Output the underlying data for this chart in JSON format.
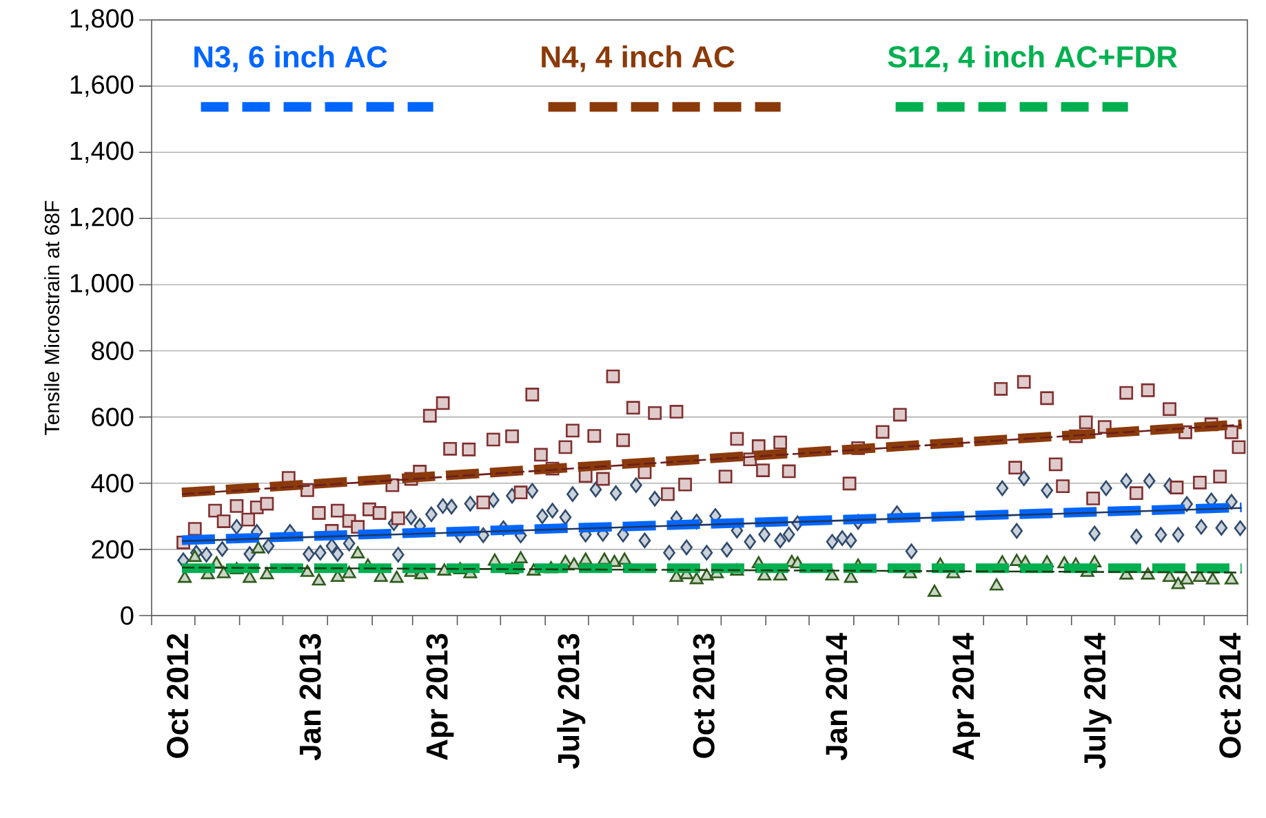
{
  "chart_data": {
    "type": "scatter",
    "ylabel": "Tensile Microstrain at 68F",
    "xlim": [
      "2012-09-13",
      "2014-10-13"
    ],
    "ylim": [
      0,
      1800
    ],
    "yticks": [
      0,
      200,
      400,
      600,
      800,
      {
        "value": 1000,
        "label": "1,000"
      },
      {
        "value": 1200,
        "label": "1,200"
      },
      {
        "value": 1400,
        "label": "1,400"
      },
      {
        "value": 1600,
        "label": "1,600"
      },
      {
        "value": 1800,
        "label": "1,800"
      }
    ],
    "xticks": [
      {
        "value": "2012-09-13",
        "label": null
      },
      {
        "value": "2012-10-01",
        "label": "Oct 2012"
      },
      {
        "value": "2012-10-13",
        "label": null
      },
      {
        "value": "2012-11-13",
        "label": null
      },
      {
        "value": "2012-12-13",
        "label": null
      },
      {
        "value": "2013-01-01",
        "label": "Jan 2013"
      },
      {
        "value": "2013-01-13",
        "label": null
      },
      {
        "value": "2013-02-13",
        "label": null
      },
      {
        "value": "2013-03-13",
        "label": null
      },
      {
        "value": "2013-04-01",
        "label": "Apr 2013"
      },
      {
        "value": "2013-04-13",
        "label": null
      },
      {
        "value": "2013-05-13",
        "label": null
      },
      {
        "value": "2013-06-13",
        "label": null
      },
      {
        "value": "2013-07-01",
        "label": "July 2013"
      },
      {
        "value": "2013-07-13",
        "label": null
      },
      {
        "value": "2013-08-13",
        "label": null
      },
      {
        "value": "2013-09-13",
        "label": null
      },
      {
        "value": "2013-10-01",
        "label": "Oct 2013"
      },
      {
        "value": "2013-10-13",
        "label": null
      },
      {
        "value": "2013-11-13",
        "label": null
      },
      {
        "value": "2013-12-13",
        "label": null
      },
      {
        "value": "2014-01-01",
        "label": "Jan 2014"
      },
      {
        "value": "2014-01-13",
        "label": null
      },
      {
        "value": "2014-02-13",
        "label": null
      },
      {
        "value": "2014-03-13",
        "label": null
      },
      {
        "value": "2014-04-01",
        "label": "Apr 2014"
      },
      {
        "value": "2014-04-13",
        "label": null
      },
      {
        "value": "2014-05-13",
        "label": null
      },
      {
        "value": "2014-06-13",
        "label": null
      },
      {
        "value": "2014-07-01",
        "label": "July 2014"
      },
      {
        "value": "2014-07-13",
        "label": null
      },
      {
        "value": "2014-08-13",
        "label": null
      },
      {
        "value": "2014-09-13",
        "label": null
      },
      {
        "value": "2014-10-01",
        "label": "Oct 2014"
      },
      {
        "value": "2014-10-13",
        "label": null
      }
    ],
    "grid": "y",
    "legend": "top",
    "series": [
      {
        "marker": "diamond",
        "color": "#2f4a6d",
        "x": [
          "2012-10-05",
          "2012-10-14",
          "2012-10-21",
          "2012-11-01",
          "2012-11-11",
          "2012-11-20",
          "2012-11-25",
          "2012-12-03",
          "2012-12-18",
          "2012-12-31",
          "2013-01-08",
          "2013-01-16",
          "2013-01-20",
          "2013-01-28",
          "2013-02-28",
          "2013-03-03",
          "2013-03-12",
          "2013-03-18",
          "2013-03-26",
          "2013-04-03",
          "2013-04-09",
          "2013-04-15",
          "2013-04-22",
          "2013-05-01",
          "2013-05-08",
          "2013-05-15",
          "2013-05-21",
          "2013-05-27",
          "2013-06-04",
          "2013-06-11",
          "2013-06-18",
          "2013-06-27",
          "2013-07-02",
          "2013-07-11",
          "2013-07-18",
          "2013-07-23",
          "2013-08-01",
          "2013-08-06",
          "2013-08-15",
          "2013-08-21",
          "2013-08-28",
          "2013-09-07",
          "2013-09-12",
          "2013-09-19",
          "2013-09-26",
          "2013-10-03",
          "2013-10-09",
          "2013-10-17",
          "2013-10-24",
          "2013-11-02",
          "2013-11-12",
          "2013-11-23",
          "2013-11-29",
          "2013-12-05",
          "2013-12-29",
          "2014-01-05",
          "2014-01-11",
          "2014-01-16",
          "2014-02-12",
          "2014-02-22",
          "2014-04-26",
          "2014-05-06",
          "2014-05-11",
          "2014-05-27",
          "2014-06-29",
          "2014-07-07",
          "2014-07-21",
          "2014-07-28",
          "2014-08-06",
          "2014-08-14",
          "2014-08-20",
          "2014-08-26",
          "2014-09-01",
          "2014-09-11",
          "2014-09-18",
          "2014-09-25",
          "2014-10-02",
          "2014-10-08"
        ],
        "values": [
          167,
          190,
          184,
          201,
          268,
          186,
          253,
          210,
          253,
          186,
          190,
          210,
          186,
          218,
          279,
          184,
          297,
          271,
          306,
          331,
          329,
          243,
          338,
          243,
          349,
          264,
          362,
          242,
          377,
          300,
          317,
          297,
          367,
          245,
          381,
          247,
          370,
          245,
          394,
          227,
          353,
          190,
          294,
          206,
          284,
          190,
          301,
          199,
          257,
          223,
          245,
          227,
          245,
          279,
          223,
          234,
          227,
          283,
          309,
          194,
          385,
          256,
          415,
          378,
          248,
          385,
          407,
          239,
          407,
          244,
          393,
          244,
          337,
          268,
          348,
          265,
          344,
          264
        ]
      },
      {
        "marker": "square",
        "color": "#7f2f2f",
        "x": [
          "2012-10-05",
          "2012-10-13",
          "2012-10-27",
          "2012-11-02",
          "2012-11-11",
          "2012-11-19",
          "2012-11-25",
          "2012-12-02",
          "2012-12-17",
          "2012-12-30",
          "2013-01-07",
          "2013-01-16",
          "2013-01-20",
          "2013-01-28",
          "2013-02-03",
          "2013-02-11",
          "2013-02-18",
          "2013-02-27",
          "2013-03-03",
          "2013-03-12",
          "2013-03-18",
          "2013-03-25",
          "2013-04-03",
          "2013-04-08",
          "2013-04-21",
          "2013-05-01",
          "2013-05-08",
          "2013-05-21",
          "2013-05-27",
          "2013-06-04",
          "2013-06-10",
          "2013-06-18",
          "2013-06-27",
          "2013-07-02",
          "2013-07-11",
          "2013-07-17",
          "2013-07-23",
          "2013-07-30",
          "2013-08-06",
          "2013-08-13",
          "2013-08-21",
          "2013-08-28",
          "2013-09-06",
          "2013-09-12",
          "2013-09-18",
          "2013-10-16",
          "2013-10-24",
          "2013-11-02",
          "2013-11-08",
          "2013-11-11",
          "2013-11-23",
          "2013-11-29",
          "2014-01-10",
          "2014-01-16",
          "2014-02-02",
          "2014-02-14",
          "2014-04-25",
          "2014-05-05",
          "2014-05-11",
          "2014-05-27",
          "2014-06-02",
          "2014-06-07",
          "2014-06-16",
          "2014-06-23",
          "2014-06-28",
          "2014-07-06",
          "2014-07-21",
          "2014-07-28",
          "2014-08-05",
          "2014-08-20",
          "2014-08-25",
          "2014-08-31",
          "2014-09-10",
          "2014-09-18",
          "2014-09-24",
          "2014-10-02",
          "2014-10-07"
        ],
        "values": [
          221,
          262,
          317,
          285,
          331,
          290,
          327,
          338,
          416,
          379,
          310,
          256,
          317,
          286,
          268,
          321,
          310,
          394,
          294,
          413,
          435,
          604,
          642,
          504,
          502,
          342,
          532,
          542,
          372,
          668,
          486,
          444,
          509,
          559,
          422,
          543,
          413,
          723,
          530,
          628,
          433,
          612,
          367,
          616,
          396,
          420,
          534,
          472,
          512,
          439,
          523,
          436,
          399,
          506,
          555,
          607,
          685,
          447,
          706,
          657,
          457,
          391,
          542,
          584,
          354,
          570,
          673,
          370,
          681,
          624,
          387,
          554,
          402,
          578,
          420,
          554,
          509
        ]
      },
      {
        "marker": "triangle",
        "color": "#2e5a1c",
        "x": [
          "2012-10-06",
          "2012-10-13",
          "2012-10-22",
          "2012-10-28",
          "2012-11-02",
          "2012-11-11",
          "2012-11-20",
          "2012-11-26",
          "2012-12-02",
          "2012-12-30",
          "2013-01-07",
          "2013-01-20",
          "2013-01-28",
          "2013-02-03",
          "2013-02-10",
          "2013-02-19",
          "2013-03-02",
          "2013-03-12",
          "2013-03-19",
          "2013-04-04",
          "2013-04-15",
          "2013-04-22",
          "2013-05-09",
          "2013-05-21",
          "2013-05-27",
          "2013-06-05",
          "2013-06-17",
          "2013-06-27",
          "2013-07-03",
          "2013-07-11",
          "2013-07-24",
          "2013-07-31",
          "2013-08-07",
          "2013-09-12",
          "2013-09-19",
          "2013-09-26",
          "2013-10-03",
          "2013-10-10",
          "2013-10-24",
          "2013-11-08",
          "2013-11-12",
          "2013-11-23",
          "2013-12-01",
          "2013-12-05",
          "2013-12-29",
          "2014-01-11",
          "2014-01-16",
          "2014-02-21",
          "2014-03-10",
          "2014-03-14",
          "2014-03-23",
          "2014-04-22",
          "2014-04-26",
          "2014-05-06",
          "2014-05-12",
          "2014-05-27",
          "2014-06-08",
          "2014-06-16",
          "2014-06-24",
          "2014-06-29",
          "2014-07-21",
          "2014-08-05",
          "2014-08-20",
          "2014-08-26",
          "2014-09-01",
          "2014-09-10",
          "2014-09-19",
          "2014-10-02"
        ],
        "values": [
          112,
          175,
          123,
          156,
          126,
          138,
          112,
          201,
          123,
          130,
          104,
          115,
          126,
          186,
          149,
          115,
          112,
          130,
          123,
          134,
          138,
          126,
          164,
          138,
          171,
          134,
          141,
          160,
          152,
          167,
          167,
          160,
          167,
          115,
          123,
          108,
          119,
          126,
          134,
          156,
          119,
          119,
          160,
          156,
          119,
          112,
          149,
          126,
          70,
          152,
          126,
          89,
          159,
          163,
          159,
          159,
          156,
          152,
          130,
          159,
          122,
          122,
          115,
          93,
          107,
          115,
          107,
          107
        ]
      },
      {
        "type": "line",
        "line_style": "dashed",
        "color": "#6b1f1f",
        "x": [
          "2012-10-04",
          "2014-10-09"
        ],
        "values": [
          367,
          577
        ]
      },
      {
        "type": "line",
        "line_style": "solid",
        "color": "#1f3864",
        "x": [
          "2012-10-04",
          "2014-10-09"
        ],
        "values": [
          225,
          325
        ]
      },
      {
        "type": "line",
        "line_style": "dashed",
        "color": "#1e3d14",
        "x": [
          "2012-10-04",
          "2014-10-09"
        ],
        "values": [
          145,
          130
        ]
      },
      {
        "type": "line",
        "line_style": "dashed",
        "name": "N3, 6 inch AC",
        "color": "#0066ff",
        "x": [
          "2012-10-04",
          "2014-10-09"
        ],
        "values": [
          228,
          327
        ]
      },
      {
        "type": "line",
        "line_style": "dashed",
        "name": "N4, 4 inch AC",
        "color": "#8b3a0a",
        "x": [
          "2012-10-04",
          "2014-10-09"
        ],
        "values": [
          372,
          578
        ]
      },
      {
        "type": "line",
        "line_style": "dashed",
        "name": "S12, 4 inch AC+FDR",
        "color": "#00b050",
        "x": [
          "2012-10-04",
          "2014-10-09"
        ],
        "values": [
          143,
          143
        ]
      }
    ]
  }
}
